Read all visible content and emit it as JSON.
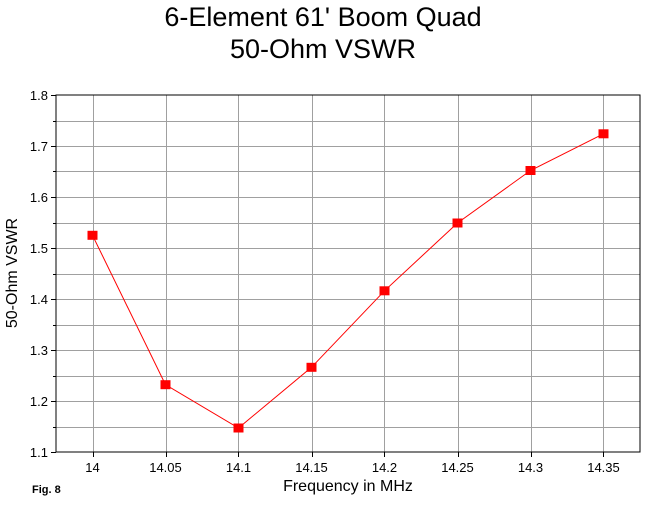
{
  "chart_data": {
    "type": "line",
    "title": "6-Element 61' Boom Quad",
    "subtitle": "50-Ohm VSWR",
    "xlabel": "Frequency in MHz",
    "ylabel": "50-Ohm VSWR",
    "figure_label": "Fig. 8",
    "x": [
      14,
      14.05,
      14.1,
      14.15,
      14.2,
      14.25,
      14.3,
      14.35
    ],
    "x_tick_labels": [
      "14",
      "14.05",
      "14.1",
      "14.15",
      "14.2",
      "14.25",
      "14.3",
      "14.35"
    ],
    "xlim": [
      13.975,
      14.375
    ],
    "ylim": [
      1.1,
      1.8
    ],
    "y_ticks": [
      1.1,
      1.2,
      1.3,
      1.4,
      1.5,
      1.6,
      1.7,
      1.8
    ],
    "y_tick_labels": [
      "1.1",
      "1.2",
      "1.3",
      "1.4",
      "1.5",
      "1.6",
      "1.7",
      "1.8"
    ],
    "y_minor_step": 0.05,
    "grid": true,
    "series": [
      {
        "values": [
          1.525,
          1.232,
          1.147,
          1.266,
          1.416,
          1.549,
          1.652,
          1.724
        ],
        "color": "#ff0000",
        "marker": "square"
      }
    ]
  }
}
